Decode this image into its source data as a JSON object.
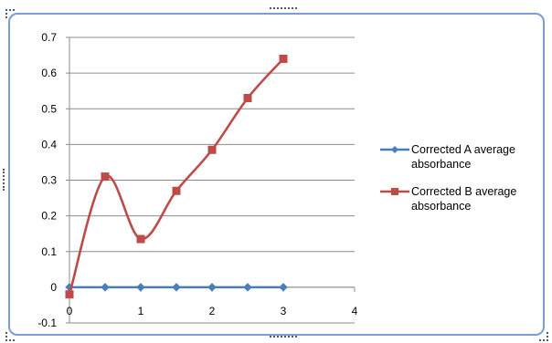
{
  "chart_data": {
    "type": "line",
    "title": "",
    "xlabel": "",
    "ylabel": "",
    "xlim": [
      0,
      4
    ],
    "ylim": [
      -0.1,
      0.7
    ],
    "x_ticks": [
      "0",
      "1",
      "2",
      "3",
      "4"
    ],
    "y_ticks": [
      "-0.1",
      "0",
      "0.1",
      "0.2",
      "0.3",
      "0.4",
      "0.5",
      "0.6",
      "0.7"
    ],
    "grid": true,
    "legend_position": "right",
    "series": [
      {
        "name": "Corrected A average absorbance",
        "color": "#4a7ebb",
        "marker": "diamond",
        "x": [
          0,
          0.5,
          1,
          1.5,
          2,
          2.5,
          3
        ],
        "y": [
          0,
          0,
          0,
          0,
          0,
          0,
          0
        ]
      },
      {
        "name": "Corrected B average absorbance",
        "color": "#be4b48",
        "marker": "square",
        "x": [
          0,
          0.5,
          1,
          1.5,
          2,
          2.5,
          3
        ],
        "y": [
          -0.02,
          0.31,
          0.135,
          0.27,
          0.385,
          0.53,
          0.64
        ]
      }
    ]
  }
}
